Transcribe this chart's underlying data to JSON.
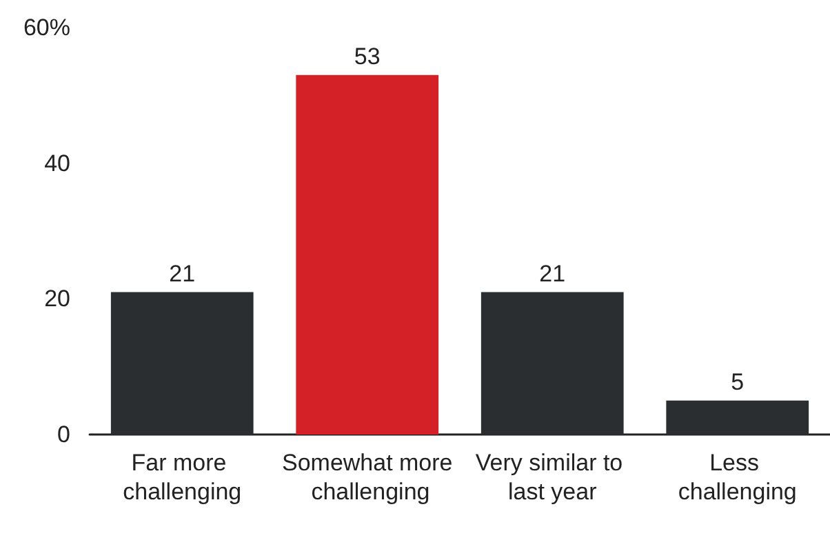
{
  "chart_data": {
    "type": "bar",
    "categories": [
      "Far more challenging",
      "Somewhat more challenging",
      "Very similar to last year",
      "Less challenging"
    ],
    "values": [
      21,
      53,
      21,
      5
    ],
    "colors": [
      "#2b2e31",
      "#d42027",
      "#2b2e31",
      "#2b2e31"
    ],
    "ylim": [
      0,
      60
    ],
    "yticks": [
      0,
      20,
      40,
      {
        "value": 60,
        "label": "60%"
      }
    ],
    "grid": false,
    "data_labels": true
  }
}
